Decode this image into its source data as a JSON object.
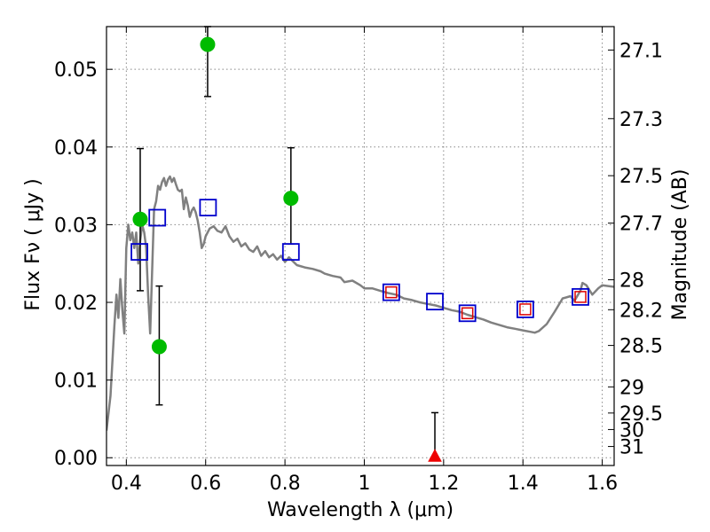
{
  "chart_data": {
    "type": "scatter",
    "xlabel": "Wavelength  λ (μm)",
    "ylabel": "Flux  Fν  ( μJy )",
    "ylabel_right": "Magnitude (AB)",
    "xlim": [
      0.35,
      1.63
    ],
    "ylim": [
      -0.001,
      0.0555
    ],
    "grid": true,
    "x_ticks": [
      0.4,
      0.6,
      0.8,
      1.0,
      1.2,
      1.4,
      1.6
    ],
    "x_tick_labels": [
      "0.4",
      "0.6",
      "0.8",
      "1",
      "1.2",
      "1.4",
      "1.6"
    ],
    "y_ticks": [
      0.0,
      0.01,
      0.02,
      0.03,
      0.04,
      0.05
    ],
    "y_tick_labels": [
      "0.00",
      "0.01",
      "0.02",
      "0.03",
      "0.04",
      "0.05"
    ],
    "right_ticks": [
      {
        "label": "27.1",
        "mag": 27.1
      },
      {
        "label": "27.3",
        "mag": 27.3
      },
      {
        "label": "27.5",
        "mag": 27.5
      },
      {
        "label": "27.7",
        "mag": 27.7
      },
      {
        "label": "28",
        "mag": 28.0
      },
      {
        "label": "28.2",
        "mag": 28.2
      },
      {
        "label": "28.5",
        "mag": 28.5
      },
      {
        "label": "29",
        "mag": 29.0
      },
      {
        "label": "29.5",
        "mag": 29.5
      },
      {
        "label": "30",
        "mag": 30.0
      },
      {
        "label": "31",
        "mag": 31.0
      }
    ],
    "colors": {
      "model": "#808080",
      "observed": "#00bb00",
      "model_box": "#0000cc",
      "model_box_inner": "#dd0000",
      "upper_limit": "#ee0000",
      "errorbar": "#000000",
      "grid": "#888888"
    },
    "series": [
      {
        "kind": "model_sed",
        "points": [
          [
            0.35,
            0.0035
          ],
          [
            0.36,
            0.008
          ],
          [
            0.37,
            0.017
          ],
          [
            0.375,
            0.021
          ],
          [
            0.38,
            0.018
          ],
          [
            0.385,
            0.023
          ],
          [
            0.39,
            0.019
          ],
          [
            0.395,
            0.016
          ],
          [
            0.4,
            0.027
          ],
          [
            0.405,
            0.03
          ],
          [
            0.41,
            0.028
          ],
          [
            0.415,
            0.029
          ],
          [
            0.42,
            0.027
          ],
          [
            0.425,
            0.029
          ],
          [
            0.43,
            0.025
          ],
          [
            0.435,
            0.028
          ],
          [
            0.44,
            0.03
          ],
          [
            0.445,
            0.029
          ],
          [
            0.45,
            0.027
          ],
          [
            0.455,
            0.021
          ],
          [
            0.46,
            0.016
          ],
          [
            0.465,
            0.024
          ],
          [
            0.47,
            0.032
          ],
          [
            0.475,
            0.033
          ],
          [
            0.48,
            0.035
          ],
          [
            0.485,
            0.0345
          ],
          [
            0.49,
            0.0355
          ],
          [
            0.495,
            0.036
          ],
          [
            0.5,
            0.035
          ],
          [
            0.505,
            0.0358
          ],
          [
            0.51,
            0.0362
          ],
          [
            0.515,
            0.0355
          ],
          [
            0.52,
            0.036
          ],
          [
            0.525,
            0.0352
          ],
          [
            0.53,
            0.0345
          ],
          [
            0.535,
            0.0343
          ],
          [
            0.54,
            0.0345
          ],
          [
            0.545,
            0.032
          ],
          [
            0.55,
            0.0335
          ],
          [
            0.555,
            0.0325
          ],
          [
            0.56,
            0.031
          ],
          [
            0.565,
            0.0318
          ],
          [
            0.57,
            0.0322
          ],
          [
            0.575,
            0.0316
          ],
          [
            0.58,
            0.0305
          ],
          [
            0.585,
            0.029
          ],
          [
            0.59,
            0.027
          ],
          [
            0.595,
            0.0275
          ],
          [
            0.6,
            0.0285
          ],
          [
            0.61,
            0.0295
          ],
          [
            0.62,
            0.0298
          ],
          [
            0.63,
            0.0292
          ],
          [
            0.64,
            0.029
          ],
          [
            0.65,
            0.0298
          ],
          [
            0.66,
            0.0285
          ],
          [
            0.67,
            0.0278
          ],
          [
            0.68,
            0.0282
          ],
          [
            0.69,
            0.0272
          ],
          [
            0.7,
            0.0276
          ],
          [
            0.71,
            0.0268
          ],
          [
            0.72,
            0.0265
          ],
          [
            0.73,
            0.0272
          ],
          [
            0.74,
            0.026
          ],
          [
            0.75,
            0.0266
          ],
          [
            0.76,
            0.0258
          ],
          [
            0.77,
            0.0262
          ],
          [
            0.78,
            0.0255
          ],
          [
            0.79,
            0.026
          ],
          [
            0.8,
            0.0252
          ],
          [
            0.81,
            0.0258
          ],
          [
            0.82,
            0.0253
          ],
          [
            0.83,
            0.0248
          ],
          [
            0.85,
            0.0245
          ],
          [
            0.87,
            0.0243
          ],
          [
            0.89,
            0.024
          ],
          [
            0.9,
            0.0237
          ],
          [
            0.92,
            0.0234
          ],
          [
            0.94,
            0.0232
          ],
          [
            0.95,
            0.0226
          ],
          [
            0.97,
            0.0228
          ],
          [
            0.99,
            0.0222
          ],
          [
            1.0,
            0.0218
          ],
          [
            1.02,
            0.0218
          ],
          [
            1.04,
            0.0215
          ],
          [
            1.06,
            0.0212
          ],
          [
            1.08,
            0.021
          ],
          [
            1.1,
            0.0205
          ],
          [
            1.12,
            0.0203
          ],
          [
            1.14,
            0.02
          ],
          [
            1.16,
            0.0198
          ],
          [
            1.18,
            0.0196
          ],
          [
            1.2,
            0.0193
          ],
          [
            1.22,
            0.019
          ],
          [
            1.24,
            0.0188
          ],
          [
            1.26,
            0.0184
          ],
          [
            1.28,
            0.0181
          ],
          [
            1.3,
            0.0178
          ],
          [
            1.32,
            0.0174
          ],
          [
            1.34,
            0.0171
          ],
          [
            1.36,
            0.0168
          ],
          [
            1.38,
            0.0166
          ],
          [
            1.4,
            0.0164
          ],
          [
            1.42,
            0.0162
          ],
          [
            1.43,
            0.0161
          ],
          [
            1.44,
            0.0163
          ],
          [
            1.46,
            0.0172
          ],
          [
            1.48,
            0.0188
          ],
          [
            1.5,
            0.0205
          ],
          [
            1.52,
            0.0208
          ],
          [
            1.53,
            0.0202
          ],
          [
            1.545,
            0.0215
          ],
          [
            1.55,
            0.0225
          ],
          [
            1.56,
            0.0222
          ],
          [
            1.575,
            0.021
          ],
          [
            1.59,
            0.0218
          ],
          [
            1.6,
            0.0222
          ],
          [
            1.63,
            0.022
          ]
        ]
      },
      {
        "kind": "observed",
        "points": [
          {
            "x": 0.435,
            "y": 0.0307,
            "yerr_low": 0.0215,
            "yerr_high": 0.0398
          },
          {
            "x": 0.483,
            "y": 0.0143,
            "yerr_low": 0.0068,
            "yerr_high": 0.0221
          },
          {
            "x": 0.605,
            "y": 0.0532,
            "yerr_low": 0.0465,
            "yerr_high": 0.0555
          },
          {
            "x": 0.815,
            "y": 0.0334,
            "yerr_low": 0.0275,
            "yerr_high": 0.0399
          }
        ]
      },
      {
        "kind": "model_photometry",
        "points": [
          {
            "x": 0.433,
            "y": 0.0265,
            "inner": false
          },
          {
            "x": 0.478,
            "y": 0.0309,
            "inner": false
          },
          {
            "x": 0.606,
            "y": 0.0322,
            "inner": false
          },
          {
            "x": 0.815,
            "y": 0.0265,
            "inner": false
          },
          {
            "x": 1.068,
            "y": 0.0213,
            "inner": true
          },
          {
            "x": 1.178,
            "y": 0.0201,
            "inner": false
          },
          {
            "x": 1.26,
            "y": 0.0186,
            "inner": true
          },
          {
            "x": 1.406,
            "y": 0.0191,
            "inner": true
          },
          {
            "x": 1.545,
            "y": 0.0207,
            "inner": true
          }
        ]
      },
      {
        "kind": "upper_limit",
        "points": [
          {
            "x": 1.178,
            "y": 0.0,
            "yerr_high": 0.0058
          }
        ]
      }
    ]
  }
}
